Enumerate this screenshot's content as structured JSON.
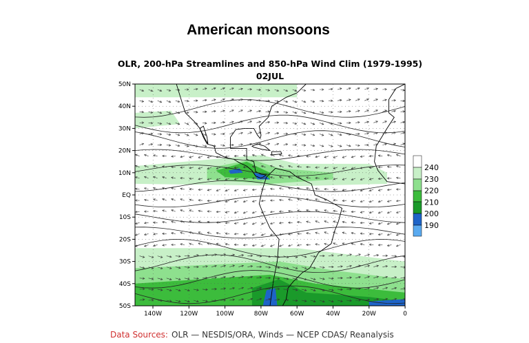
{
  "slide_title": "American monsoons",
  "map": {
    "title": "OLR, 200-hPa Streamlines and 850-hPa Wind Clim (1979-1995)",
    "date": "02JUL",
    "lat_labels": [
      "50N",
      "40N",
      "30N",
      "20N",
      "10N",
      "EQ",
      "10S",
      "20S",
      "30S",
      "40S",
      "50S"
    ],
    "lon_labels": [
      "140W",
      "120W",
      "100W",
      "80W",
      "60W",
      "40W",
      "20W",
      "0"
    ]
  },
  "colorbar": {
    "labels": [
      "240",
      "230",
      "220",
      "210",
      "200",
      "190"
    ]
  },
  "source": {
    "label": "Data Sources:",
    "text": "OLR — NESDIS/ORA, Winds — NCEP CDAS/ Reanalysis"
  }
}
